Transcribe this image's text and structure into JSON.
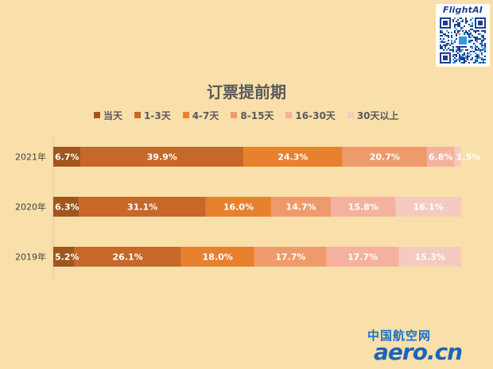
{
  "brand": {
    "name": "FlightAI"
  },
  "watermark": {
    "cn": "中国航空网",
    "en": "aero.cn"
  },
  "colors": [
    "#a0561c",
    "#c7672a",
    "#e8812e",
    "#ef9a6a",
    "#f4b29e",
    "#f5cbbf"
  ],
  "chart_data": {
    "type": "bar",
    "orientation": "horizontal",
    "stacked": true,
    "title": "订票提前期",
    "legend_position": "top",
    "categories": [
      "2021年",
      "2020年",
      "2019年"
    ],
    "series": [
      {
        "name": "当天",
        "values": [
          6.7,
          6.3,
          5.2
        ],
        "labels": [
          "6.7%",
          "6.3%",
          "5.2%"
        ]
      },
      {
        "name": "1-3天",
        "values": [
          39.9,
          31.1,
          26.1
        ],
        "labels": [
          "39.9%",
          "31.1%",
          "26.1%"
        ]
      },
      {
        "name": "4-7天",
        "values": [
          24.3,
          16.0,
          18.0
        ],
        "labels": [
          "24.3%",
          "16.0%",
          "18.0%"
        ]
      },
      {
        "name": "8-15天",
        "values": [
          20.7,
          14.7,
          17.7
        ],
        "labels": [
          "20.7%",
          "14.7%",
          "17.7%"
        ]
      },
      {
        "name": "16-30天",
        "values": [
          6.8,
          15.8,
          17.7
        ],
        "labels": [
          "6.8%",
          "15.8%",
          "17.7%"
        ]
      },
      {
        "name": "30天以上",
        "values": [
          1.5,
          16.1,
          15.3
        ],
        "labels": [
          "1.5%",
          "16.1%",
          "15.3%"
        ]
      }
    ]
  }
}
